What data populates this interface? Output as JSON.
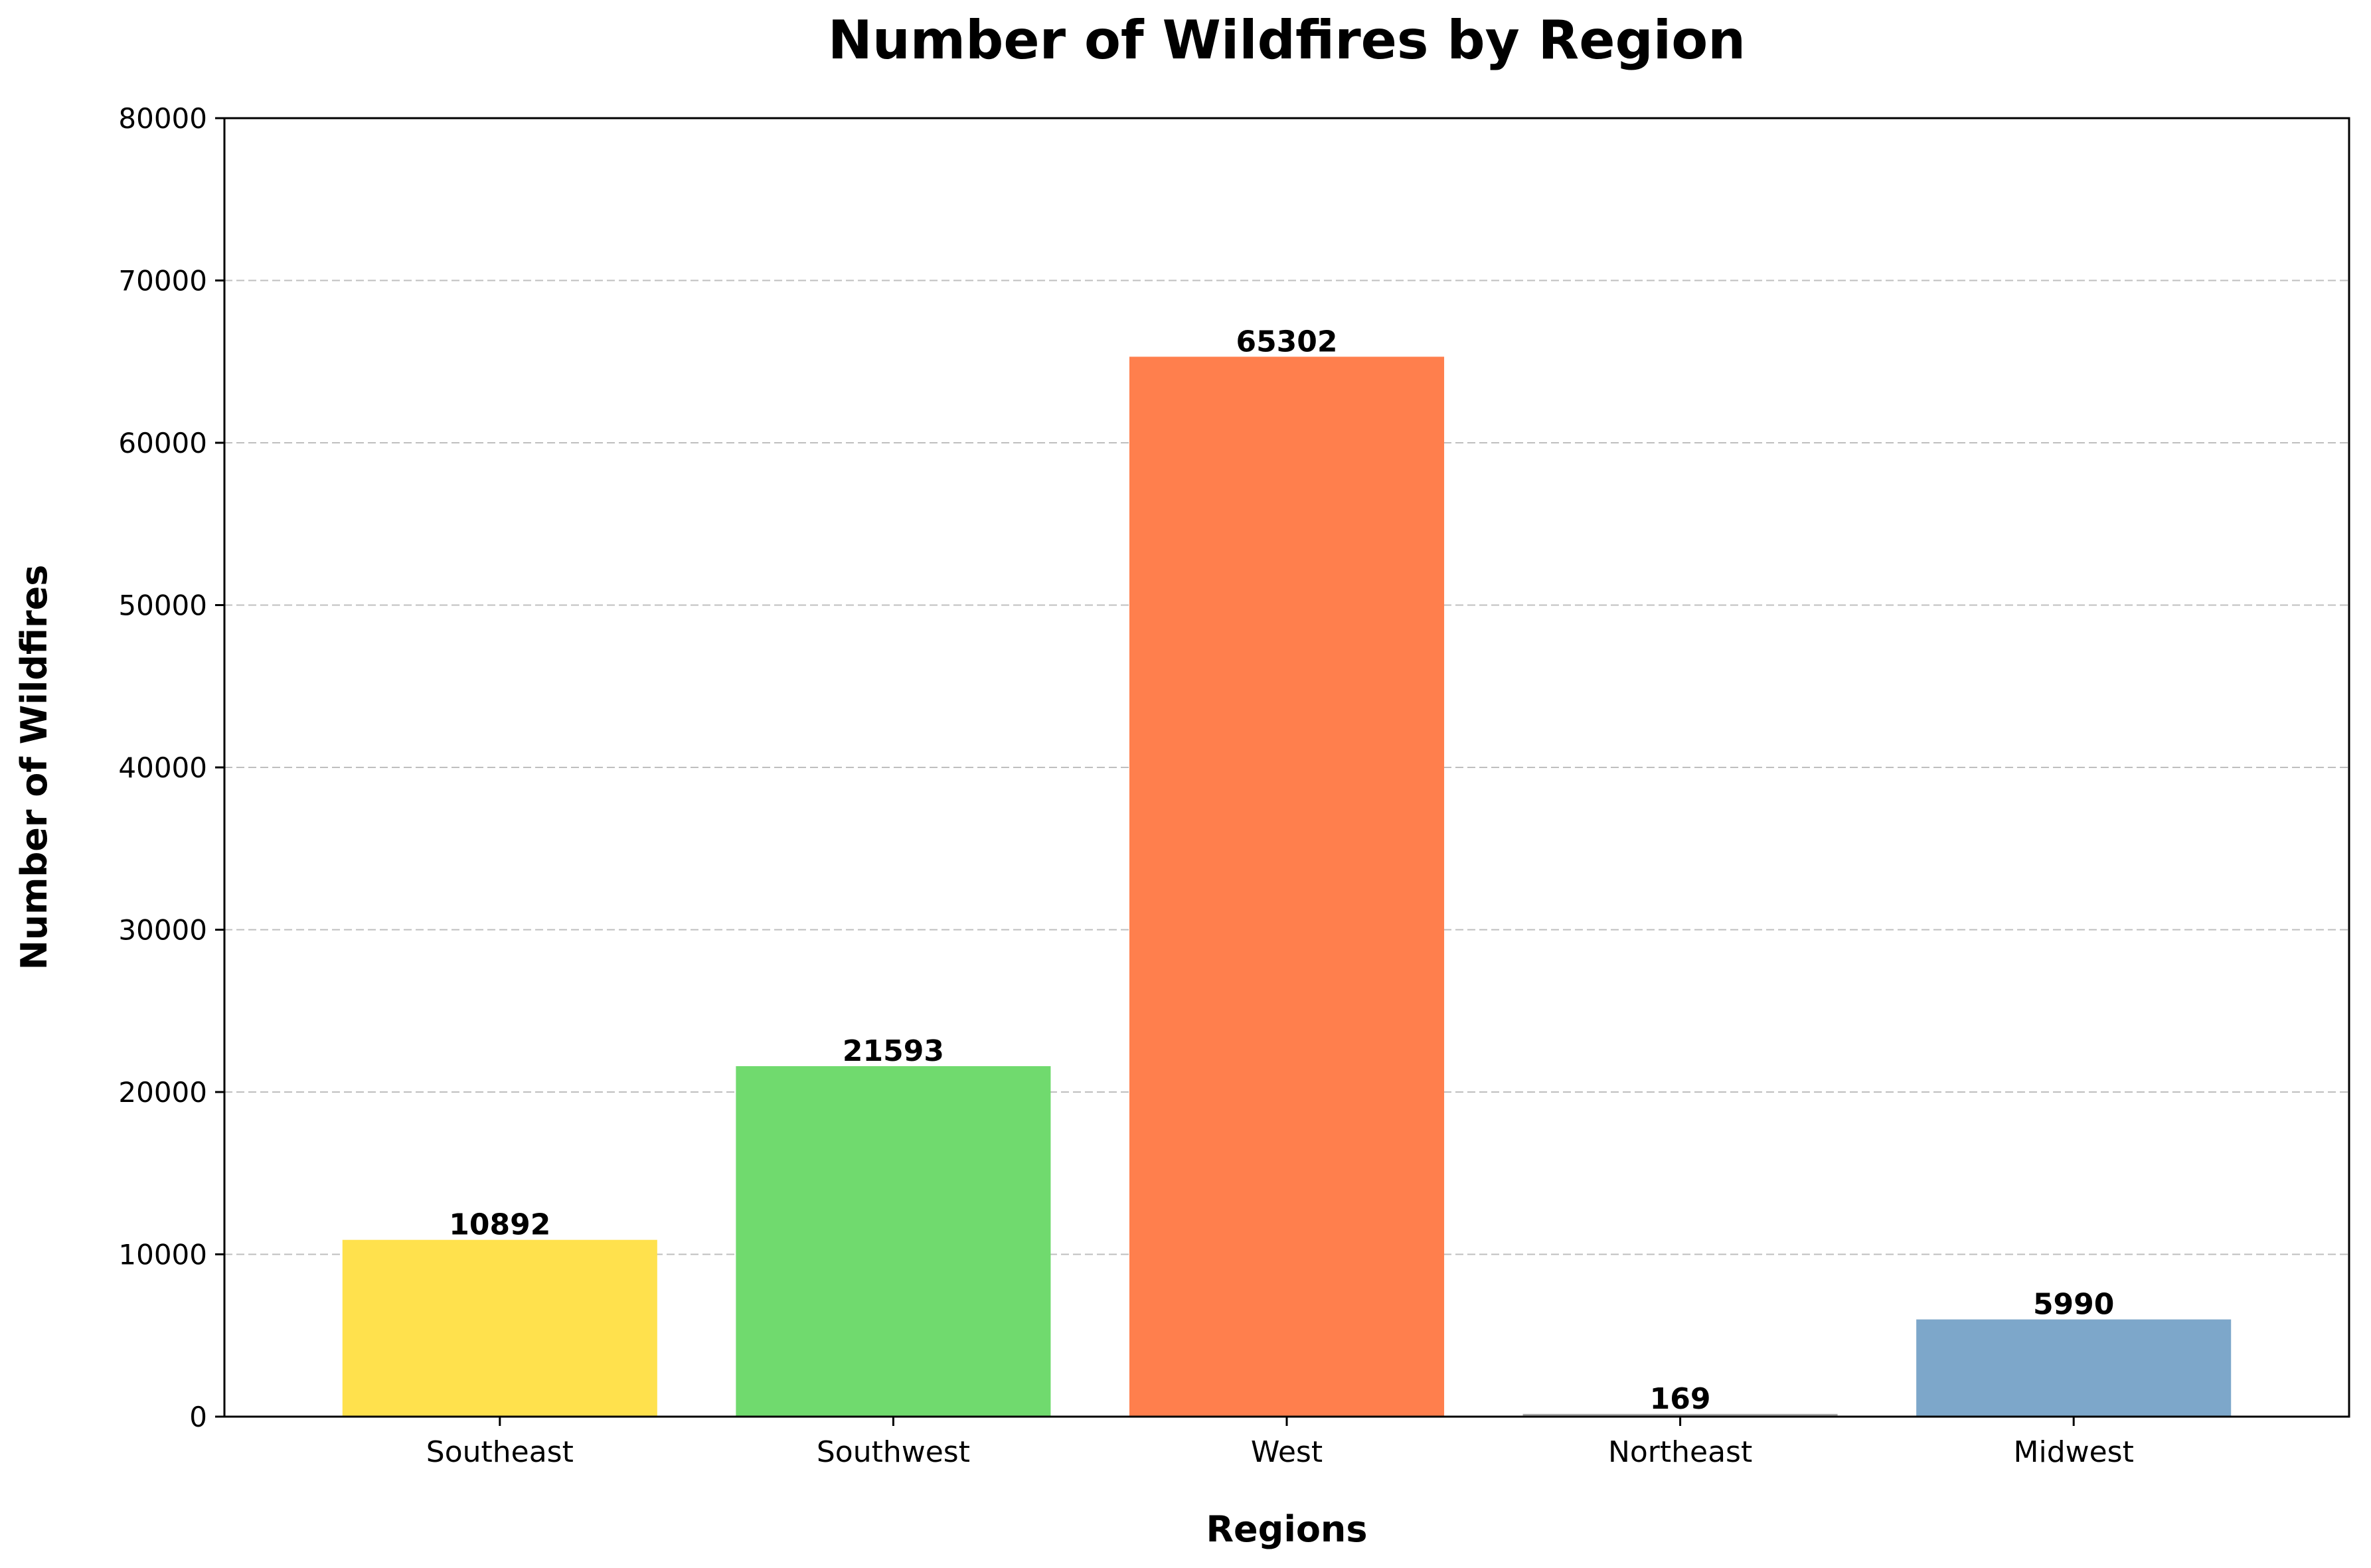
{
  "chart_data": {
    "type": "bar",
    "title": "Number of Wildfires by Region",
    "xlabel": "Regions",
    "ylabel": "Number of Wildfires",
    "categories": [
      "Southeast",
      "Southwest",
      "West",
      "Northeast",
      "Midwest"
    ],
    "values": [
      10892,
      21593,
      65302,
      169,
      5990
    ],
    "data_labels": [
      "10892",
      "21593",
      "65302",
      "169",
      "5990"
    ],
    "colors": [
      "#FFE14D",
      "#70DA6E",
      "#FF7F4D",
      "#A9A9A9",
      "#7DA7CA"
    ],
    "ylim": [
      0,
      80000
    ],
    "yticks": [
      0,
      10000,
      20000,
      30000,
      40000,
      50000,
      60000,
      70000,
      80000
    ],
    "ytick_labels": [
      "0",
      "10000",
      "20000",
      "30000",
      "40000",
      "50000",
      "60000",
      "70000",
      "80000"
    ],
    "grid": "y-dashed",
    "legend": "none"
  }
}
